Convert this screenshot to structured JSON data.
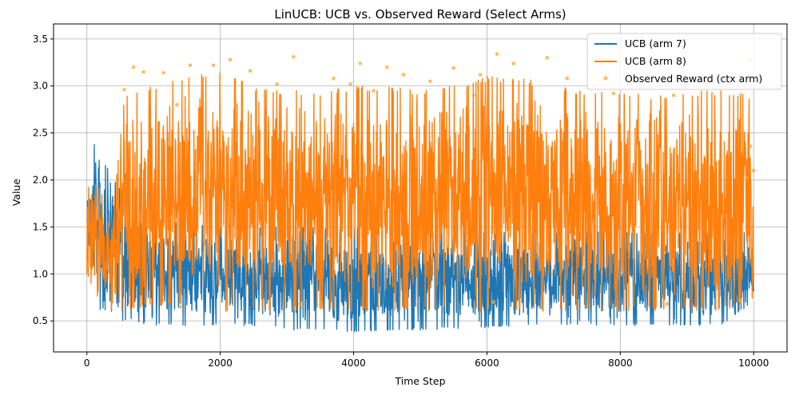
{
  "chart_data": {
    "type": "line",
    "title": "LinUCB: UCB vs. Observed Reward (Select Arms)",
    "xlabel": "Time Step",
    "ylabel": "Value",
    "xlim": [
      -500,
      10500
    ],
    "ylim": [
      0.17,
      3.66
    ],
    "xticks": [
      0,
      2000,
      4000,
      6000,
      8000,
      10000
    ],
    "yticks": [
      0.5,
      1.0,
      1.5,
      2.0,
      2.5,
      3.0,
      3.5
    ],
    "grid": true,
    "legend_position": "top-right",
    "series": [
      {
        "name": "UCB (arm 7)",
        "kind": "line",
        "color": "#1f77b4",
        "x": [
          0,
          100,
          200,
          300,
          400,
          550,
          600,
          1000,
          1500,
          2000,
          2500,
          3000,
          3500,
          4000,
          4500,
          5000,
          5500,
          6000,
          6500,
          7000,
          7500,
          8000,
          8500,
          9000,
          9500,
          10000
        ],
        "lower": [
          1.3,
          0.75,
          0.6,
          0.6,
          0.55,
          0.5,
          0.5,
          0.45,
          0.45,
          0.45,
          0.45,
          0.4,
          0.4,
          0.38,
          0.4,
          0.4,
          0.42,
          0.42,
          0.45,
          0.45,
          0.45,
          0.45,
          0.45,
          0.45,
          0.45,
          0.7
        ],
        "upper": [
          2.1,
          2.4,
          2.2,
          2.15,
          2.0,
          1.9,
          1.8,
          1.6,
          1.55,
          1.5,
          1.5,
          1.5,
          1.5,
          1.5,
          1.45,
          1.5,
          1.5,
          1.45,
          1.45,
          1.45,
          1.45,
          1.45,
          1.45,
          1.45,
          1.45,
          1.45
        ]
      },
      {
        "name": "UCB (arm 8)",
        "kind": "line",
        "color": "#ff7f0e",
        "x": [
          0,
          100,
          200,
          300,
          400,
          550,
          600,
          1000,
          1500,
          2000,
          2500,
          3000,
          3500,
          4000,
          4500,
          5000,
          5500,
          6000,
          6500,
          7000,
          7500,
          8000,
          8500,
          9000,
          9500,
          10000
        ],
        "lower": [
          1.0,
          0.8,
          0.7,
          0.65,
          0.6,
          0.6,
          0.6,
          0.65,
          0.65,
          0.6,
          0.6,
          0.6,
          0.6,
          0.6,
          0.6,
          0.6,
          0.6,
          0.6,
          0.6,
          0.6,
          0.6,
          0.6,
          0.6,
          0.6,
          0.6,
          0.7
        ],
        "upper": [
          1.9,
          2.0,
          1.9,
          1.8,
          1.75,
          2.8,
          2.95,
          3.0,
          3.1,
          3.15,
          3.0,
          2.95,
          2.95,
          3.0,
          3.0,
          2.95,
          3.0,
          3.1,
          3.1,
          3.0,
          2.95,
          2.95,
          2.9,
          2.95,
          2.95,
          2.9
        ]
      },
      {
        "name": "Observed Reward (ctx arm)",
        "kind": "scatter",
        "color": "#ffa726",
        "points": [
          [
            560,
            2.96
          ],
          [
            700,
            3.2
          ],
          [
            850,
            3.15
          ],
          [
            1150,
            3.14
          ],
          [
            1550,
            3.22
          ],
          [
            1900,
            3.22
          ],
          [
            2150,
            3.28
          ],
          [
            2450,
            3.16
          ],
          [
            3100,
            3.31
          ],
          [
            3700,
            3.08
          ],
          [
            3950,
            3.02
          ],
          [
            4100,
            3.24
          ],
          [
            4500,
            3.2
          ],
          [
            4750,
            3.12
          ],
          [
            5150,
            3.05
          ],
          [
            5500,
            3.19
          ],
          [
            5900,
            3.12
          ],
          [
            6150,
            3.34
          ],
          [
            6400,
            3.24
          ],
          [
            6900,
            3.3
          ],
          [
            7200,
            3.08
          ],
          [
            7600,
            3.0
          ],
          [
            8150,
            3.02
          ],
          [
            8800,
            2.9
          ],
          [
            9200,
            3.1
          ],
          [
            9600,
            3.05
          ],
          [
            9950,
            3.28
          ],
          [
            1350,
            2.8
          ],
          [
            2850,
            3.02
          ],
          [
            4300,
            2.95
          ],
          [
            5800,
            2.9
          ],
          [
            7900,
            2.92
          ],
          [
            9900,
            2.02
          ],
          [
            10000,
            2.1
          ],
          [
            9950,
            2.36
          ],
          [
            1400,
            0.65
          ],
          [
            3200,
            0.68
          ],
          [
            6100,
            0.7
          ],
          [
            8700,
            0.68
          ],
          [
            9800,
            0.72
          ]
        ]
      }
    ]
  }
}
